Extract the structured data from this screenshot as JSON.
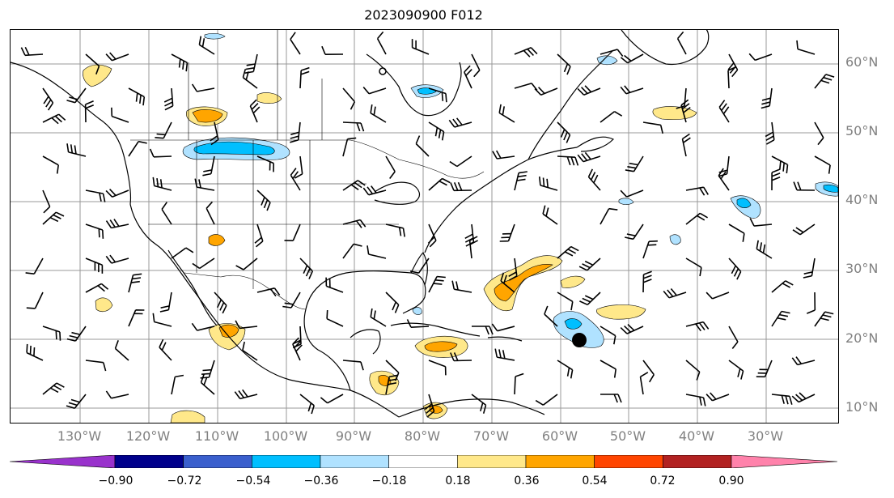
{
  "title": "2023090900 F012",
  "lat_labels": [
    "60°N",
    "50°N",
    "40°N",
    "30°N",
    "20°N",
    "10°N"
  ],
  "lon_labels": [
    "130°W",
    "120°W",
    "110°W",
    "100°W",
    "90°W",
    "80°W",
    "70°W",
    "60°W",
    "50°W",
    "40°W",
    "30°W"
  ],
  "colorbar": {
    "ticks": [
      "−0.90",
      "−0.72",
      "−0.54",
      "−0.36",
      "−0.18",
      "0.18",
      "0.36",
      "0.54",
      "0.72",
      "0.90"
    ],
    "colors": [
      "#9932cc",
      "#00008b",
      "#3a5fcd",
      "#00bfff",
      "#b0e2ff",
      "#ffffff",
      "#ffe88a",
      "#ffa500",
      "#ff4500",
      "#b22222",
      "#ff82ab"
    ]
  },
  "colors": {
    "grid": "#808080",
    "coastline": "#000000",
    "neg_light": "#b0e2ff",
    "neg_mid": "#00bfff",
    "pos_light": "#ffe88a",
    "pos_mid": "#ffa500",
    "pos_high": "#ff4500"
  }
}
